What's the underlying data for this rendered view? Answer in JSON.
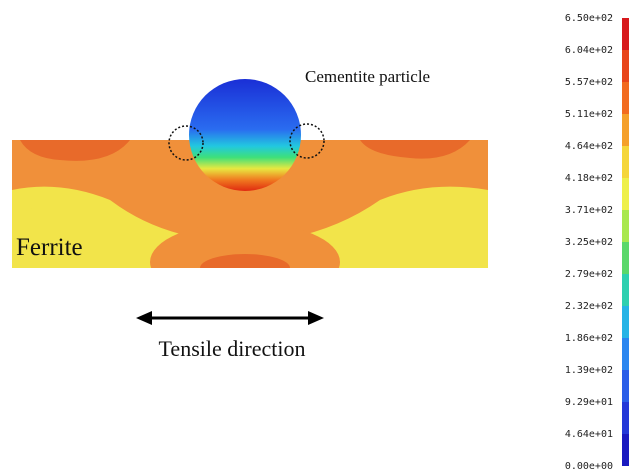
{
  "figure": {
    "particle_label": "Cementite particle",
    "matrix_label": "Ferrite",
    "direction_label": "Tensile direction",
    "colorbar": {
      "labels": [
        "6.50e+02",
        "6.04e+02",
        "5.57e+02",
        "5.11e+02",
        "4.64e+02",
        "4.18e+02",
        "3.71e+02",
        "3.25e+02",
        "2.79e+02",
        "2.32e+02",
        "1.86e+02",
        "1.39e+02",
        "9.29e+01",
        "4.64e+01",
        "0.00e+00"
      ]
    }
  }
}
